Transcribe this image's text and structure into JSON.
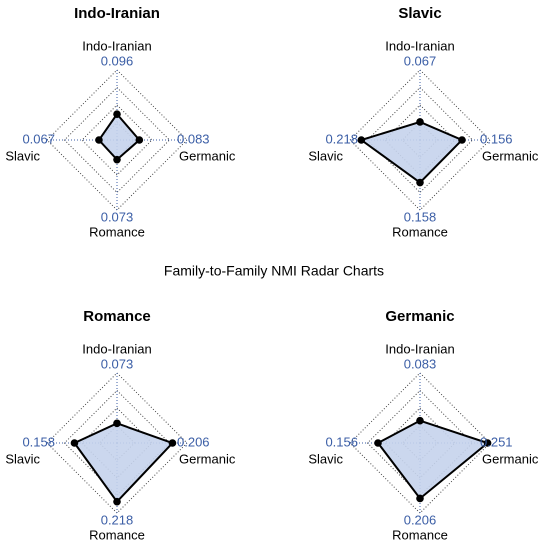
{
  "title": "Family-to-Family NMI Radar Charts",
  "chart_data": [
    {
      "type": "radar",
      "title": "Indo-Iranian",
      "categories": [
        "Indo-Iranian",
        "Germanic",
        "Romance",
        "Slavic"
      ],
      "values": [
        0.096,
        0.083,
        0.073,
        0.067
      ],
      "rlim": [
        0,
        0.26
      ],
      "rticks": [
        0.065,
        0.13,
        0.195,
        0.26
      ],
      "color": "#c5d3ec"
    },
    {
      "type": "radar",
      "title": "Slavic",
      "categories": [
        "Indo-Iranian",
        "Germanic",
        "Romance",
        "Slavic"
      ],
      "values": [
        0.067,
        0.156,
        0.158,
        0.218
      ],
      "rlim": [
        0,
        0.26
      ],
      "rticks": [
        0.065,
        0.13,
        0.195,
        0.26
      ],
      "color": "#c5d3ec"
    },
    {
      "type": "radar",
      "title": "Romance",
      "categories": [
        "Indo-Iranian",
        "Germanic",
        "Romance",
        "Slavic"
      ],
      "values": [
        0.073,
        0.206,
        0.218,
        0.158
      ],
      "rlim": [
        0,
        0.26
      ],
      "rticks": [
        0.065,
        0.13,
        0.195,
        0.26
      ],
      "color": "#c5d3ec"
    },
    {
      "type": "radar",
      "title": "Germanic",
      "categories": [
        "Indo-Iranian",
        "Germanic",
        "Romance",
        "Slavic"
      ],
      "values": [
        0.083,
        0.251,
        0.206,
        0.156
      ],
      "rlim": [
        0,
        0.26
      ],
      "rticks": [
        0.065,
        0.13,
        0.195,
        0.26
      ],
      "color": "#c5d3ec"
    }
  ]
}
